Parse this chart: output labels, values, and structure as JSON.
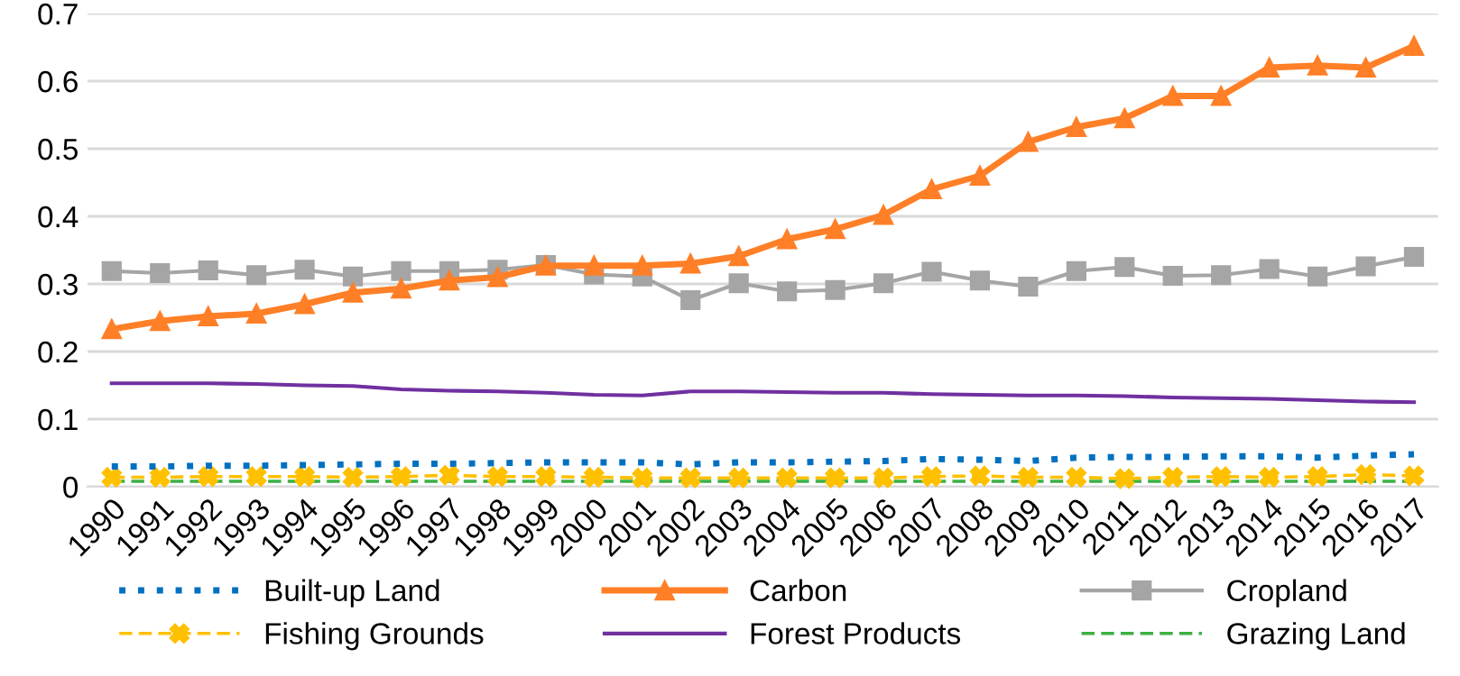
{
  "chart_data": {
    "type": "line",
    "categories": [
      "1990",
      "1991",
      "1992",
      "1993",
      "1994",
      "1995",
      "1996",
      "1997",
      "1998",
      "1999",
      "2000",
      "2001",
      "2002",
      "2003",
      "2004",
      "2005",
      "2006",
      "2007",
      "2008",
      "2009",
      "2010",
      "2011",
      "2012",
      "2013",
      "2014",
      "2015",
      "2016",
      "2017"
    ],
    "ylim": [
      0,
      0.7
    ],
    "yticks": [
      0,
      0.1,
      0.2,
      0.3,
      0.4,
      0.5,
      0.6,
      0.7
    ],
    "grid": "y",
    "legend": "bottom",
    "series": [
      {
        "name": "Built-up Land",
        "color": "#0070c0",
        "marker": "none",
        "line_style": "dotted",
        "values": [
          0.03,
          0.03,
          0.031,
          0.031,
          0.032,
          0.033,
          0.034,
          0.034,
          0.035,
          0.036,
          0.036,
          0.036,
          0.033,
          0.036,
          0.036,
          0.037,
          0.038,
          0.041,
          0.04,
          0.038,
          0.043,
          0.044,
          0.044,
          0.045,
          0.045,
          0.043,
          0.046,
          0.048
        ]
      },
      {
        "name": "Carbon",
        "color": "#ff7f27",
        "marker": "triangle",
        "line_style": "solid",
        "values": [
          0.233,
          0.245,
          0.252,
          0.256,
          0.27,
          0.287,
          0.293,
          0.305,
          0.31,
          0.327,
          0.327,
          0.327,
          0.33,
          0.341,
          0.366,
          0.381,
          0.402,
          0.44,
          0.46,
          0.51,
          0.532,
          0.545,
          0.578,
          0.578,
          0.62,
          0.623,
          0.62,
          0.652
        ]
      },
      {
        "name": "Cropland",
        "color": "#a5a5a5",
        "marker": "square",
        "line_style": "solid",
        "values": [
          0.319,
          0.316,
          0.32,
          0.313,
          0.321,
          0.311,
          0.319,
          0.319,
          0.321,
          0.328,
          0.314,
          0.311,
          0.276,
          0.301,
          0.289,
          0.291,
          0.301,
          0.318,
          0.305,
          0.296,
          0.319,
          0.325,
          0.312,
          0.313,
          0.322,
          0.311,
          0.326,
          0.34
        ]
      },
      {
        "name": "Fishing Grounds",
        "color": "#ffc000",
        "marker": "cross",
        "line_style": "dashed",
        "values": [
          0.014,
          0.014,
          0.015,
          0.015,
          0.015,
          0.014,
          0.015,
          0.017,
          0.015,
          0.015,
          0.014,
          0.013,
          0.013,
          0.013,
          0.013,
          0.013,
          0.013,
          0.015,
          0.016,
          0.014,
          0.014,
          0.012,
          0.014,
          0.015,
          0.014,
          0.015,
          0.018,
          0.016
        ]
      },
      {
        "name": "Forest Products",
        "color": "#7030a0",
        "marker": "none",
        "line_style": "solid",
        "values": [
          0.153,
          0.153,
          0.153,
          0.152,
          0.15,
          0.149,
          0.144,
          0.142,
          0.141,
          0.139,
          0.136,
          0.135,
          0.141,
          0.141,
          0.14,
          0.139,
          0.139,
          0.137,
          0.136,
          0.135,
          0.135,
          0.134,
          0.132,
          0.131,
          0.13,
          0.128,
          0.126,
          0.125
        ]
      },
      {
        "name": "Grazing Land",
        "color": "#3cb043",
        "marker": "none",
        "line_style": "dashed",
        "values": [
          0.008,
          0.008,
          0.008,
          0.008,
          0.008,
          0.008,
          0.008,
          0.008,
          0.008,
          0.008,
          0.008,
          0.008,
          0.008,
          0.008,
          0.008,
          0.008,
          0.008,
          0.008,
          0.008,
          0.008,
          0.008,
          0.008,
          0.008,
          0.008,
          0.008,
          0.008,
          0.008,
          0.008
        ]
      }
    ]
  }
}
